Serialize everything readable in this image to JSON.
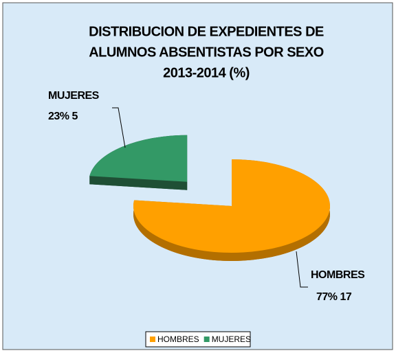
{
  "chart_data": {
    "type": "pie",
    "title": [
      "DISTRIBUCION DE EXPEDIENTES DE",
      "ALUMNOS ABSENTISTAS POR SEXO",
      "2013-2014 (%)"
    ],
    "categories": [
      "HOMBRES",
      "MUJERES"
    ],
    "values": [
      77,
      23
    ],
    "value_labels": [
      "77% 17",
      "23% 5"
    ],
    "colors": [
      "#ffa000",
      "#339966"
    ],
    "side_colors": [
      "#b36f00",
      "#1f4f35"
    ],
    "explode": [
      false,
      true
    ],
    "legend": "bottom"
  }
}
